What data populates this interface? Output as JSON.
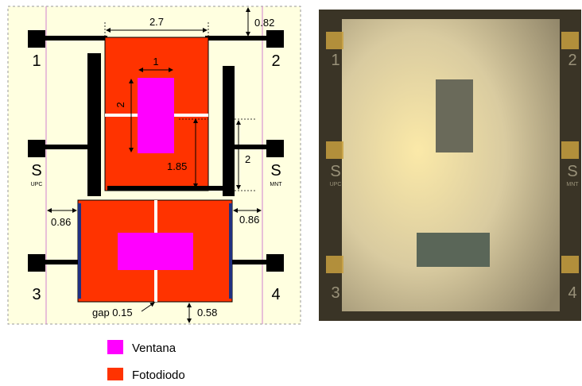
{
  "diagram": {
    "dimensions": [
      "2.7",
      "0.82",
      "1",
      "2",
      "1.85",
      "2",
      "0.86",
      "0.86",
      "gap 0.15",
      "0.58"
    ],
    "pads": [
      "1",
      "2",
      "3",
      "4"
    ],
    "side_pads": [
      {
        "letter": "S",
        "sub": "UPC"
      },
      {
        "letter": "S",
        "sub": "MNT"
      }
    ]
  },
  "photo": {
    "pads": [
      "1",
      "2",
      "3",
      "4"
    ],
    "side_pads": [
      {
        "letter": "S",
        "sub": "UPC"
      },
      {
        "letter": "S",
        "sub": "MNT"
      }
    ]
  },
  "legend": [
    {
      "label": "Ventana",
      "color": "#ff00ff"
    },
    {
      "label": "Fotodiodo",
      "color": "#ff3300"
    }
  ]
}
